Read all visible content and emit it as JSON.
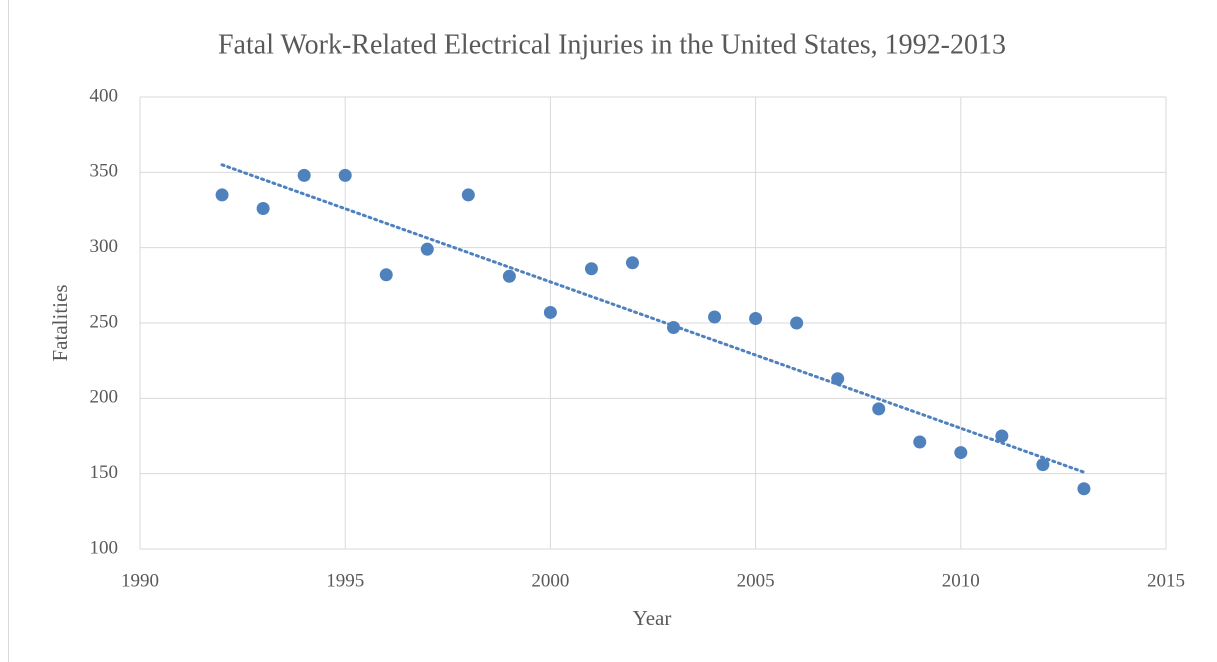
{
  "chart_data": {
    "type": "scatter",
    "title": "Fatal Work-Related Electrical Injuries in the United States, 1992-2013",
    "x_label": "Year",
    "y_label": "Fatalities",
    "x": [
      1992,
      1993,
      1994,
      1995,
      1996,
      1997,
      1998,
      1999,
      2000,
      2001,
      2002,
      2003,
      2004,
      2005,
      2006,
      2007,
      2008,
      2009,
      2010,
      2011,
      2012,
      2013
    ],
    "values": [
      335,
      326,
      348,
      348,
      282,
      299,
      335,
      281,
      257,
      286,
      290,
      247,
      254,
      253,
      250,
      213,
      193,
      171,
      164,
      175,
      156,
      140
    ],
    "color": "#4f81bd",
    "trendline": {
      "x": [
        1992,
        2013
      ],
      "values": [
        355,
        151
      ],
      "color": "#4f81bd"
    },
    "xlim": [
      1990,
      2015
    ],
    "xticks": [
      1990,
      1995,
      2000,
      2005,
      2010,
      2015
    ],
    "ylim": [
      100,
      400
    ],
    "yticks": [
      100,
      150,
      200,
      250,
      300,
      350,
      400
    ],
    "grid": true
  }
}
